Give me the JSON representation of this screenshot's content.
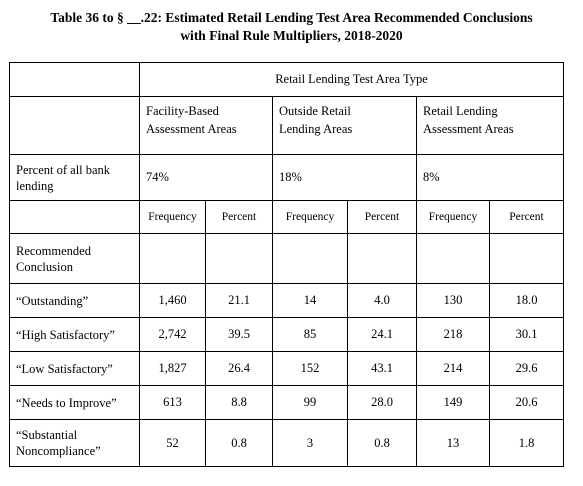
{
  "title_line1": "Table 36 to § __.22:  Estimated Retail Lending Test Area Recommended Conclusions",
  "title_line2": "with Final Rule Multipliers, 2018-2020",
  "header": "Retail Lending Test Area Type",
  "groups": [
    {
      "line1": "Facility-Based",
      "line2": "Assessment Areas"
    },
    {
      "line1": "Outside Retail",
      "line2": "Lending Areas"
    },
    {
      "line1": "Retail Lending",
      "line2": "Assessment Areas"
    }
  ],
  "percent_row": {
    "label_line1": "Percent of all bank",
    "label_line2": "lending",
    "values": [
      "74%",
      "18%",
      "8%"
    ]
  },
  "subheaders": [
    "Frequency",
    "Percent",
    "Frequency",
    "Percent",
    "Frequency",
    "Percent"
  ],
  "rc_label_line1": "Recommended",
  "rc_label_line2": "Conclusion",
  "rows": [
    {
      "label_line1": "“Outstanding”",
      "label_line2": "",
      "values": [
        "1,460",
        "21.1",
        "14",
        "4.0",
        "130",
        "18.0"
      ]
    },
    {
      "label_line1": "“High Satisfactory”",
      "label_line2": "",
      "values": [
        "2,742",
        "39.5",
        "85",
        "24.1",
        "218",
        "30.1"
      ]
    },
    {
      "label_line1": "“Low Satisfactory”",
      "label_line2": "",
      "values": [
        "1,827",
        "26.4",
        "152",
        "43.1",
        "214",
        "29.6"
      ]
    },
    {
      "label_line1": "“Needs to Improve”",
      "label_line2": "",
      "values": [
        "613",
        "8.8",
        "99",
        "28.0",
        "149",
        "20.6"
      ]
    },
    {
      "label_line1": "“Substantial",
      "label_line2": "Noncompliance”",
      "values": [
        "52",
        "0.8",
        "3",
        "0.8",
        "13",
        "1.8"
      ]
    }
  ]
}
